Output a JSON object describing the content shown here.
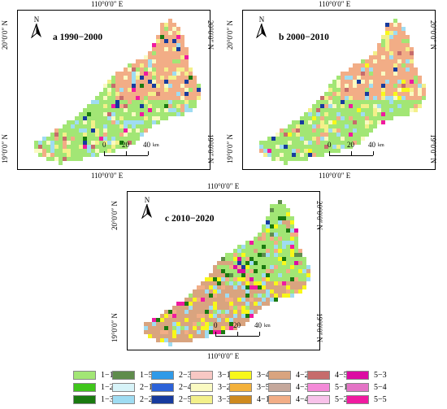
{
  "panels": [
    {
      "id": "a",
      "title": "a 1990−2000",
      "lon_label_top": "110°0′0″ E",
      "lon_label_bottom": "110°0′0″ E",
      "lat_label_top": "20°0′0″ N",
      "lat_label_bottom": "19°0′0″ N",
      "north_label": "N",
      "scale": {
        "labels": [
          "0",
          "20",
          "40"
        ],
        "unit": "km"
      },
      "dominant_classes": [
        "1−1",
        "4−4",
        "3−2",
        "2−2",
        "3−3"
      ],
      "accent_classes": [
        "5−5",
        "2−5",
        "1−3",
        "4−5"
      ]
    },
    {
      "id": "b",
      "title": "b 2000−2010",
      "lon_label_top": "110°0′0″ E",
      "lon_label_bottom": "110°0′0″ E",
      "lat_label_top": "20°0′0″ N",
      "lat_label_bottom": "19°0′0″ N",
      "north_label": "N",
      "scale": {
        "labels": [
          "0",
          "20",
          "40"
        ],
        "unit": "km"
      },
      "dominant_classes": [
        "1−1",
        "4−4",
        "3−2",
        "2−2",
        "3−3"
      ],
      "accent_classes": [
        "5−5",
        "2−5",
        "4−5",
        "3−4"
      ]
    },
    {
      "id": "c",
      "title": "c 2010−2020",
      "lon_label_top": "110°0′0″ E",
      "lon_label_bottom": "110°0′0″ E",
      "lat_label_top": "20°0′0″ N",
      "lat_label_bottom": "19°0′0″ N",
      "north_label": "N",
      "scale": {
        "labels": [
          "0",
          "20",
          "40"
        ],
        "unit": "km"
      },
      "dominant_classes": [
        "4−2",
        "1−1",
        "4−4",
        "2−2",
        "3−4",
        "1−3"
      ],
      "accent_classes": [
        "2−5",
        "5−5",
        "5−3",
        "1−5"
      ]
    }
  ],
  "legend": [
    {
      "label": "1−1",
      "color": "#a2e675"
    },
    {
      "label": "1−2",
      "color": "#3fc61b"
    },
    {
      "label": "1−3",
      "color": "#1a7a10"
    },
    {
      "label": "1−5",
      "color": "#5f8c4c"
    },
    {
      "label": "2−1",
      "color": "#d7f3f8"
    },
    {
      "label": "2−2",
      "color": "#9fdcf2"
    },
    {
      "label": "2−3",
      "color": "#2f9ae8"
    },
    {
      "label": "2−4",
      "color": "#2c62d8"
    },
    {
      "label": "2−5",
      "color": "#173b9e"
    },
    {
      "label": "3−1",
      "color": "#f8c8c4"
    },
    {
      "label": "3−2",
      "color": "#fafac2"
    },
    {
      "label": "3−3",
      "color": "#f3f08a"
    },
    {
      "label": "3−4",
      "color": "#f8f81a"
    },
    {
      "label": "3−5",
      "color": "#f3b13a"
    },
    {
      "label": "4−1",
      "color": "#ce8a1f"
    },
    {
      "label": "4−2",
      "color": "#d9a47f"
    },
    {
      "label": "4−3",
      "color": "#c5a89c"
    },
    {
      "label": "4−4",
      "color": "#f2ad86"
    },
    {
      "label": "4−5",
      "color": "#c66c6c"
    },
    {
      "label": "5−1",
      "color": "#f48ad8"
    },
    {
      "label": "5−2",
      "color": "#f8c2ea"
    },
    {
      "label": "5−3",
      "color": "#dc0ca2"
    },
    {
      "label": "5−4",
      "color": "#e474c6"
    },
    {
      "label": "5−5",
      "color": "#f01aa0"
    }
  ]
}
